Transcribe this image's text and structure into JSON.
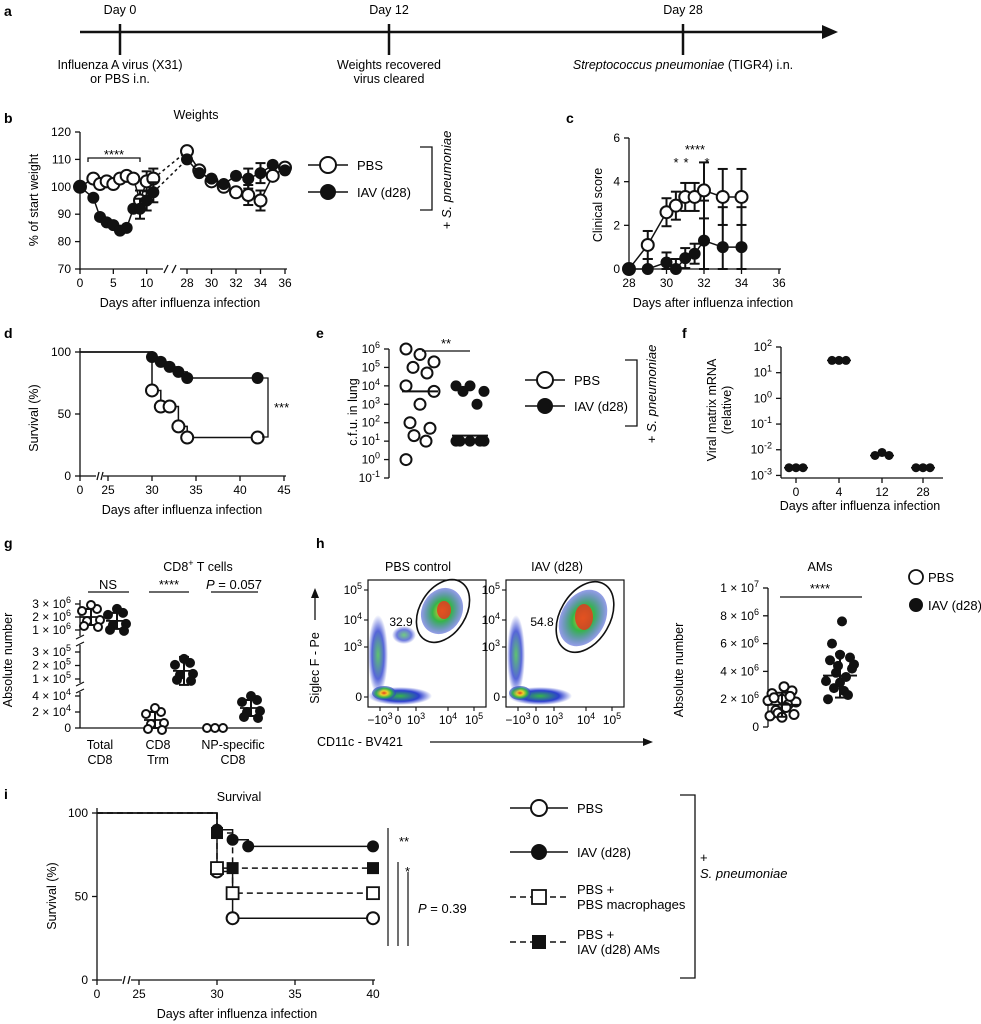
{
  "panel_labels": {
    "a": "a",
    "b": "b",
    "c": "c",
    "d": "d",
    "e": "e",
    "f": "f",
    "g": "g",
    "h": "h",
    "i": "i"
  },
  "timeline": {
    "day0": "Day 0",
    "day12": "Day 12",
    "day28": "Day 28",
    "day0_line1": "Influenza A virus (X31)",
    "day0_line2": "or PBS i.n.",
    "day12_line1": "Weights recovered",
    "day12_line2": "virus cleared",
    "day28_italic": "Streptococcus pneumoniae",
    "day28_rest": " (TIGR4) i.n."
  },
  "legend_pbs": "PBS",
  "legend_iav": "IAV (d28)",
  "sp_bracket": "+ S. pneumoniae",
  "days_after": "Days after influenza infection",
  "panel_b": {
    "title": "Weights",
    "ylabel": "% of start weight",
    "sig": "****",
    "yticks": [
      "70",
      "80",
      "90",
      "100",
      "110",
      "120"
    ],
    "xticks_left": [
      "0",
      "5",
      "10"
    ],
    "xticks_right": [
      "28",
      "30",
      "32",
      "34",
      "36"
    ]
  },
  "panel_c": {
    "ylabel": "Clinical score",
    "sig_top": "****",
    "sig_a": "*",
    "sig_b": "*",
    "sig_c": "*",
    "yticks": [
      "0",
      "2",
      "4",
      "6"
    ],
    "xticks": [
      "28",
      "30",
      "32",
      "34",
      "36"
    ]
  },
  "panel_d": {
    "ylabel": "Survival (%)",
    "sig": "***",
    "yticks": [
      "0",
      "50",
      "100"
    ],
    "xticks": [
      "0",
      "25",
      "30",
      "35",
      "40",
      "45"
    ]
  },
  "panel_e": {
    "ylabel": "c.f.u. in lung",
    "sig": "**",
    "yticks": [
      {
        "b": "10",
        "e": "6"
      },
      {
        "b": "10",
        "e": "5"
      },
      {
        "b": "10",
        "e": "4"
      },
      {
        "b": "10",
        "e": "3"
      },
      {
        "b": "10",
        "e": "2"
      },
      {
        "b": "10",
        "e": "1"
      },
      {
        "b": "10",
        "e": "0"
      },
      {
        "b": "10",
        "e": "-1"
      }
    ]
  },
  "panel_f": {
    "ylabel_1": "Viral matrix mRNA",
    "ylabel_2": "(relative)",
    "yticks": [
      {
        "b": "10",
        "e": "2"
      },
      {
        "b": "10",
        "e": "1"
      },
      {
        "b": "10",
        "e": "0"
      },
      {
        "b": "10",
        "e": "-1"
      },
      {
        "b": "10",
        "e": "-2"
      },
      {
        "b": "10",
        "e": "-3"
      }
    ],
    "xticks": [
      "0",
      "4",
      "12",
      "28"
    ]
  },
  "panel_g": {
    "title_pre": "CD8",
    "title_sup": "+",
    "title_post": " T cells",
    "ylabel": "Absolute number",
    "sig_ns": "NS",
    "sig_trm": "****",
    "sig_np_p": "P",
    "sig_np_val": " = 0.057",
    "yt_top": [
      {
        "m": "3 × 10",
        "e": "6"
      },
      {
        "m": "2 × 10",
        "e": "6"
      },
      {
        "m": "1 × 10",
        "e": "6"
      }
    ],
    "yt_mid": [
      {
        "m": "3 × 10",
        "e": "5"
      },
      {
        "m": "2 × 10",
        "e": "5"
      },
      {
        "m": "1 × 10",
        "e": "5"
      }
    ],
    "yt_bot": [
      {
        "m": "4 × 10",
        "e": "4"
      },
      {
        "m": "2 × 10",
        "e": "4"
      },
      {
        "m": "0",
        "e": ""
      }
    ],
    "cat1_a": "Total",
    "cat1_b": "CD8",
    "cat2_a": "CD8",
    "cat2_b": "Trm",
    "cat3_a": "NP-specific",
    "cat3_b": "CD8"
  },
  "panel_h": {
    "left_title": "PBS control",
    "right_title": "IAV (d28)",
    "left_pct": "32.9",
    "right_pct": "54.8",
    "yaxis": "Siglec F - Pe",
    "xaxis": "CD11c - BV421",
    "flow_ticks": [
      {
        "b": "10",
        "e": "5"
      },
      {
        "b": "10",
        "e": "4"
      },
      {
        "b": "10",
        "e": "3"
      },
      {
        "b": "0",
        "e": ""
      }
    ],
    "flow_xticks": [
      {
        "b": "−10",
        "e": "3"
      },
      {
        "b": "0",
        "e": ""
      },
      {
        "b": "10",
        "e": "3"
      },
      {
        "b": "10",
        "e": "4"
      },
      {
        "b": "10",
        "e": "5"
      }
    ],
    "am_title": "AMs",
    "am_ylabel": "Absolute number",
    "am_sig": "****",
    "am_yticks": [
      {
        "m": "1 × 10",
        "e": "7"
      },
      {
        "m": "8 × 10",
        "e": "6"
      },
      {
        "m": "6 × 10",
        "e": "6"
      },
      {
        "m": "4 × 10",
        "e": "6"
      },
      {
        "m": "2 × 10",
        "e": "6"
      },
      {
        "m": "0",
        "e": ""
      }
    ]
  },
  "panel_i": {
    "title": "Survival",
    "ylabel": "Survival (%)",
    "sig1": "**",
    "sig2": "*",
    "sig3_p": "P",
    "sig3_val": " = 0.39",
    "yticks": [
      "0",
      "50",
      "100"
    ],
    "xticks": [
      "0",
      "25",
      "30",
      "35",
      "40"
    ],
    "leg_pbs": "PBS",
    "leg_iav": "IAV (d28)",
    "leg_mac_1": "PBS +",
    "leg_mac_2": "PBS macrophages",
    "leg_am_1": "PBS +",
    "leg_am_2": "IAV (d28) AMs",
    "bracket_plus": "+",
    "bracket_sp": "S. pneumoniae"
  },
  "colors": {
    "ink": "#111111",
    "flow_low": "#2c3fcf",
    "flow_mid": "#35b54a",
    "flow_high": "#f0d02a",
    "flow_peak": "#e23b1f"
  },
  "chart_data": [
    {
      "type": "line",
      "panel": "b",
      "title": "Weights",
      "xlabel": "Days after influenza infection",
      "ylabel": "% of start weight",
      "xlim": [
        0,
        36
      ],
      "ylim": [
        70,
        120
      ],
      "series": [
        {
          "name": "PBS",
          "x": [
            0,
            2,
            3,
            4,
            5,
            6,
            7,
            8,
            9,
            10,
            11,
            28,
            29,
            30,
            31,
            32,
            33,
            34,
            35,
            36
          ],
          "y": [
            100,
            103,
            101,
            102,
            101,
            103,
            104,
            103,
            95,
            102,
            103,
            113,
            106,
            102,
            100,
            98,
            97,
            95,
            104,
            107
          ]
        },
        {
          "name": "IAV (d28)",
          "x": [
            0,
            2,
            3,
            4,
            5,
            6,
            7,
            8,
            9,
            10,
            11,
            28,
            29,
            30,
            31,
            32,
            33,
            34,
            35,
            36
          ],
          "y": [
            100,
            96,
            89,
            87,
            86,
            84,
            85,
            92,
            92,
            95,
            98,
            110,
            105,
            103,
            101,
            104,
            103,
            105,
            108,
            106
          ]
        }
      ]
    },
    {
      "type": "line",
      "panel": "c",
      "xlabel": "Days after influenza infection",
      "ylabel": "Clinical score",
      "xlim": [
        28,
        36
      ],
      "ylim": [
        0,
        6
      ],
      "series": [
        {
          "name": "PBS",
          "x": [
            28,
            29,
            30,
            30.5,
            31,
            31.5,
            32,
            33,
            34
          ],
          "y": [
            0,
            1.1,
            2.6,
            2.9,
            3.3,
            3.3,
            3.6,
            3.3,
            3.3
          ]
        },
        {
          "name": "IAV (d28)",
          "x": [
            28,
            29,
            30,
            30.5,
            31,
            31.5,
            32,
            33,
            34
          ],
          "y": [
            0,
            0,
            0.3,
            0,
            0.5,
            0.7,
            1.3,
            1.0,
            1.0
          ]
        }
      ]
    },
    {
      "type": "line",
      "panel": "d",
      "xlabel": "Days after influenza infection",
      "ylabel": "Survival (%)",
      "xlim": [
        0,
        45
      ],
      "ylim": [
        0,
        100
      ],
      "series": [
        {
          "name": "PBS",
          "x": [
            0,
            30,
            31,
            32,
            33,
            34,
            42
          ],
          "y": [
            100,
            69,
            56,
            56,
            40,
            31,
            31
          ]
        },
        {
          "name": "IAV (d28)",
          "x": [
            0,
            30,
            31,
            32,
            33,
            34,
            42
          ],
          "y": [
            100,
            96,
            92,
            88,
            84,
            79,
            79
          ]
        }
      ]
    },
    {
      "type": "scatter",
      "panel": "e",
      "ylabel": "c.f.u. in lung",
      "yscale": "log",
      "ylim": [
        0.1,
        1000000
      ],
      "series": [
        {
          "name": "PBS",
          "values": [
            1000000,
            500000,
            200000,
            100000,
            50000,
            10000,
            5000,
            1000,
            100,
            50,
            20,
            10,
            1
          ],
          "median": 5000
        },
        {
          "name": "IAV (d28)",
          "values": [
            10000,
            10000,
            5000,
            5000,
            1000,
            10,
            10,
            10,
            10,
            10
          ],
          "median": 20
        }
      ]
    },
    {
      "type": "scatter",
      "panel": "f",
      "xlabel": "Days after influenza infection",
      "ylabel": "Viral matrix mRNA (relative)",
      "yscale": "log",
      "ylim": [
        0.001,
        100
      ],
      "categories": [
        "0",
        "4",
        "12",
        "28"
      ],
      "values": [
        0.002,
        30,
        0.006,
        0.002
      ]
    },
    {
      "type": "scatter",
      "panel": "g",
      "title": "CD8+ T cells",
      "ylabel": "Absolute number",
      "categories": [
        "Total CD8",
        "CD8 Trm",
        "NP-specific CD8"
      ],
      "series": [
        {
          "name": "PBS",
          "means": [
            2000000,
            10000,
            0
          ]
        },
        {
          "name": "IAV (d28)",
          "means": [
            1700000,
            160000,
            25000
          ]
        }
      ]
    },
    {
      "type": "scatter",
      "panel": "h",
      "title": "AMs",
      "ylabel": "Absolute number",
      "ylim": [
        0,
        10000000
      ],
      "series": [
        {
          "name": "PBS",
          "mean": 1600000
        },
        {
          "name": "IAV (d28)",
          "mean": 3700000
        }
      ]
    },
    {
      "type": "line",
      "panel": "i",
      "title": "Survival",
      "xlabel": "Days after influenza infection",
      "ylabel": "Survival (%)",
      "xlim": [
        0,
        40
      ],
      "ylim": [
        0,
        100
      ],
      "series": [
        {
          "name": "PBS",
          "x": [
            0,
            30,
            31,
            40
          ],
          "y": [
            100,
            65,
            37,
            37
          ]
        },
        {
          "name": "IAV (d28)",
          "x": [
            0,
            30,
            31,
            32,
            40
          ],
          "y": [
            100,
            90,
            84,
            80,
            80
          ]
        },
        {
          "name": "PBS + PBS macrophages",
          "x": [
            0,
            30,
            31,
            40
          ],
          "y": [
            100,
            67,
            52,
            52
          ]
        },
        {
          "name": "PBS + IAV (d28) AMs",
          "x": [
            0,
            30,
            31,
            40
          ],
          "y": [
            100,
            88,
            67,
            67
          ]
        }
      ]
    }
  ]
}
